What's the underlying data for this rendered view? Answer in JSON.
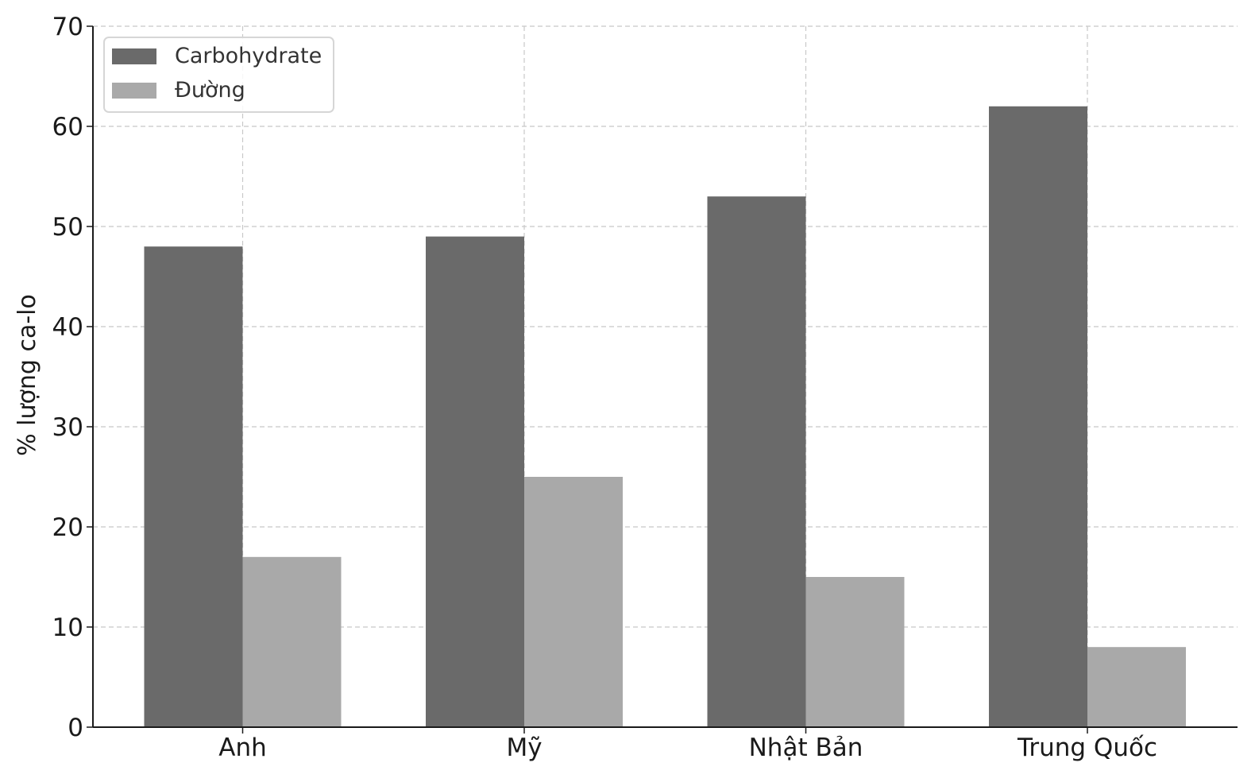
{
  "chart_data": {
    "type": "bar",
    "categories": [
      "Anh",
      "Mỹ",
      "Nhật Bản",
      "Trung Quốc"
    ],
    "series": [
      {
        "name": "Carbohydrate",
        "values": [
          48,
          49,
          53,
          62
        ],
        "color": "#6a6a6a"
      },
      {
        "name": "Đường",
        "values": [
          17,
          25,
          15,
          8
        ],
        "color": "#a9a9a9"
      }
    ],
    "title": "",
    "xlabel": "",
    "ylabel": "% lượng ca-lo",
    "ylim": [
      0,
      70
    ],
    "yticks": [
      0,
      10,
      20,
      30,
      40,
      50,
      60,
      70
    ],
    "grid": true,
    "legend": "top-left"
  }
}
